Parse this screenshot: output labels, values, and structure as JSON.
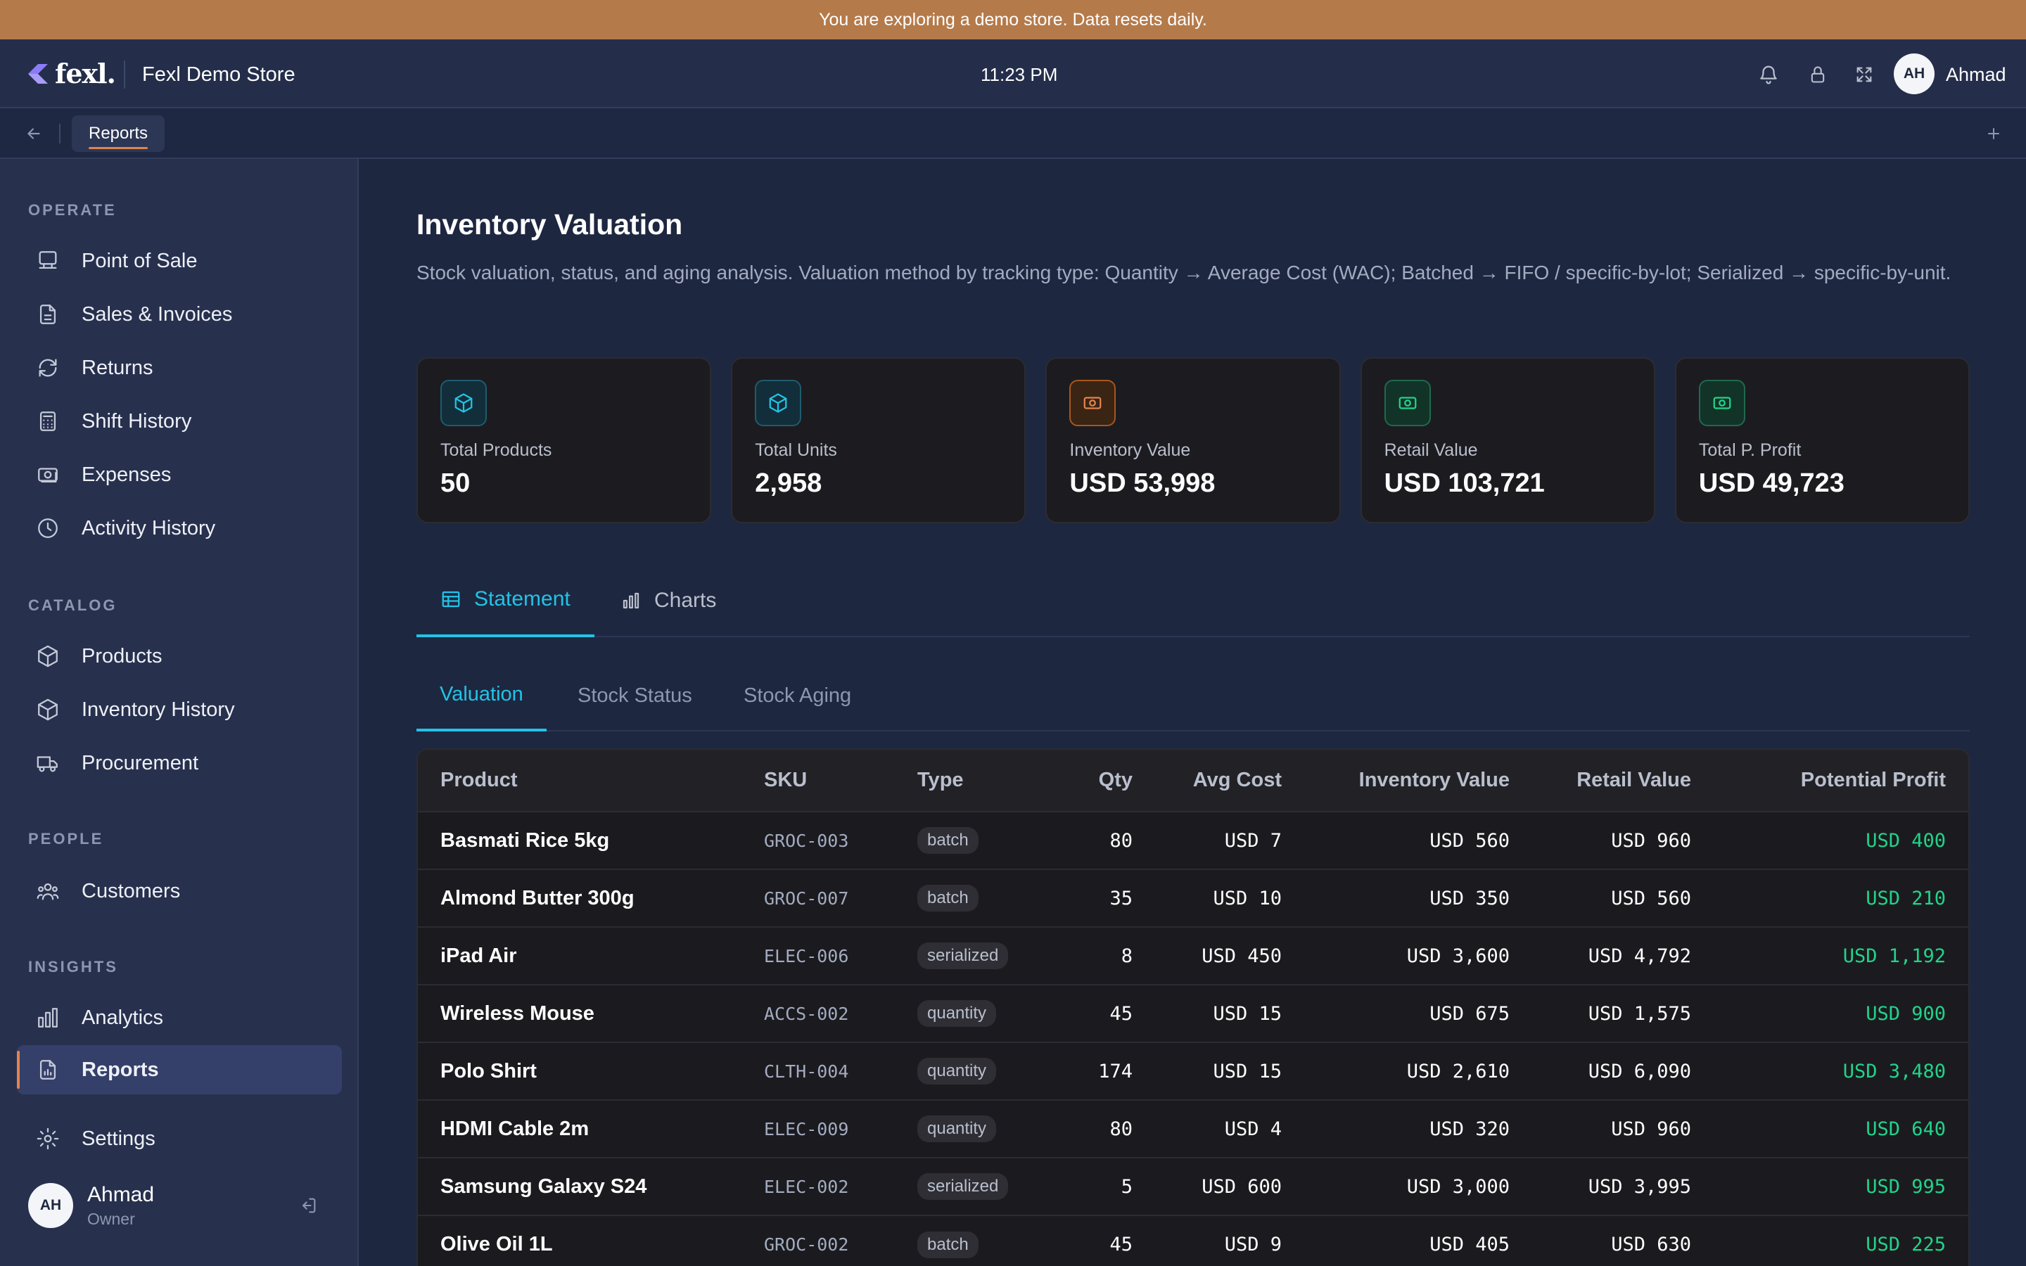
{
  "banner": {
    "text": "You are exploring a demo store. Data resets daily."
  },
  "header": {
    "logo_text": "fexl.",
    "store_name": "Fexl Demo Store",
    "time": "11:23 PM",
    "avatar_initials": "AH",
    "user_name": "Ahmad"
  },
  "tabstrip": {
    "active_tab": "Reports"
  },
  "sidebar": {
    "sections": [
      {
        "title": "OPERATE",
        "items": [
          "Point of Sale",
          "Sales & Invoices",
          "Returns",
          "Shift History",
          "Expenses",
          "Activity History"
        ]
      },
      {
        "title": "CATALOG",
        "items": [
          "Products",
          "Inventory History",
          "Procurement"
        ]
      },
      {
        "title": "PEOPLE",
        "items": [
          "Customers"
        ]
      },
      {
        "title": "INSIGHTS",
        "items": [
          "Analytics",
          "Reports"
        ]
      }
    ],
    "operate_title": "OPERATE",
    "catalog_title": "CATALOG",
    "people_title": "PEOPLE",
    "insights_title": "INSIGHTS",
    "items": {
      "pos": "Point of Sale",
      "sales": "Sales & Invoices",
      "returns": "Returns",
      "shift": "Shift History",
      "expenses": "Expenses",
      "activity": "Activity History",
      "products": "Products",
      "inventory_history": "Inventory History",
      "procurement": "Procurement",
      "customers": "Customers",
      "analytics": "Analytics",
      "reports": "Reports",
      "settings": "Settings"
    },
    "active_item": "Reports",
    "user": {
      "initials": "AH",
      "name": "Ahmad",
      "role": "Owner"
    }
  },
  "main": {
    "title": "Inventory Valuation",
    "description": "Stock valuation, status, and aging analysis. Valuation method by tracking type: Quantity → Average Cost (WAC); Batched → FIFO / specific-by-lot; Serialized → specific-by-unit.",
    "cards": [
      {
        "label": "Total Products",
        "value": "50",
        "icon": "box-icon",
        "accent": "#22c3e6"
      },
      {
        "label": "Total Units",
        "value": "2,958",
        "icon": "box-icon",
        "accent": "#22c3e6"
      },
      {
        "label": "Inventory Value",
        "value": "USD 53,998",
        "icon": "banknote-icon",
        "accent": "#e0844e"
      },
      {
        "label": "Retail Value",
        "value": "USD 103,721",
        "icon": "banknote-icon",
        "accent": "#22d38a"
      },
      {
        "label": "Total P. Profit",
        "value": "USD 49,723",
        "icon": "banknote-icon",
        "accent": "#22d38a"
      }
    ],
    "tabs": {
      "statement": "Statement",
      "charts": "Charts",
      "active": "Statement"
    },
    "subtabs": {
      "valuation": "Valuation",
      "stock_status": "Stock Status",
      "stock_aging": "Stock Aging",
      "active": "Valuation"
    },
    "table": {
      "columns": {
        "product": "Product",
        "sku": "SKU",
        "type": "Type",
        "qty": "Qty",
        "avg_cost": "Avg Cost",
        "inventory_value": "Inventory Value",
        "retail_value": "Retail Value",
        "potential_profit": "Potential Profit"
      },
      "rows": [
        {
          "product": "Basmati Rice 5kg",
          "sku": "GROC-003",
          "type": "batch",
          "qty": "80",
          "avg_cost": "USD 7",
          "inventory_value": "USD 560",
          "retail_value": "USD 960",
          "potential_profit": "USD 400"
        },
        {
          "product": "Almond Butter 300g",
          "sku": "GROC-007",
          "type": "batch",
          "qty": "35",
          "avg_cost": "USD 10",
          "inventory_value": "USD 350",
          "retail_value": "USD 560",
          "potential_profit": "USD 210"
        },
        {
          "product": "iPad Air",
          "sku": "ELEC-006",
          "type": "serialized",
          "qty": "8",
          "avg_cost": "USD 450",
          "inventory_value": "USD 3,600",
          "retail_value": "USD 4,792",
          "potential_profit": "USD 1,192"
        },
        {
          "product": "Wireless Mouse",
          "sku": "ACCS-002",
          "type": "quantity",
          "qty": "45",
          "avg_cost": "USD 15",
          "inventory_value": "USD 675",
          "retail_value": "USD 1,575",
          "potential_profit": "USD 900"
        },
        {
          "product": "Polo Shirt",
          "sku": "CLTH-004",
          "type": "quantity",
          "qty": "174",
          "avg_cost": "USD 15",
          "inventory_value": "USD 2,610",
          "retail_value": "USD 6,090",
          "potential_profit": "USD 3,480"
        },
        {
          "product": "HDMI Cable 2m",
          "sku": "ELEC-009",
          "type": "quantity",
          "qty": "80",
          "avg_cost": "USD 4",
          "inventory_value": "USD 320",
          "retail_value": "USD 960",
          "potential_profit": "USD 640"
        },
        {
          "product": "Samsung Galaxy S24",
          "sku": "ELEC-002",
          "type": "serialized",
          "qty": "5",
          "avg_cost": "USD 600",
          "inventory_value": "USD 3,000",
          "retail_value": "USD 3,995",
          "potential_profit": "USD 995"
        },
        {
          "product": "Olive Oil 1L",
          "sku": "GROC-002",
          "type": "batch",
          "qty": "45",
          "avg_cost": "USD 9",
          "inventory_value": "USD 405",
          "retail_value": "USD 630",
          "potential_profit": "USD 225"
        }
      ]
    }
  },
  "colors": {
    "accent_cyan": "#22c3e6",
    "accent_orange": "#e0844e",
    "profit_green": "#22d38a",
    "banner": "#b57a4a"
  }
}
